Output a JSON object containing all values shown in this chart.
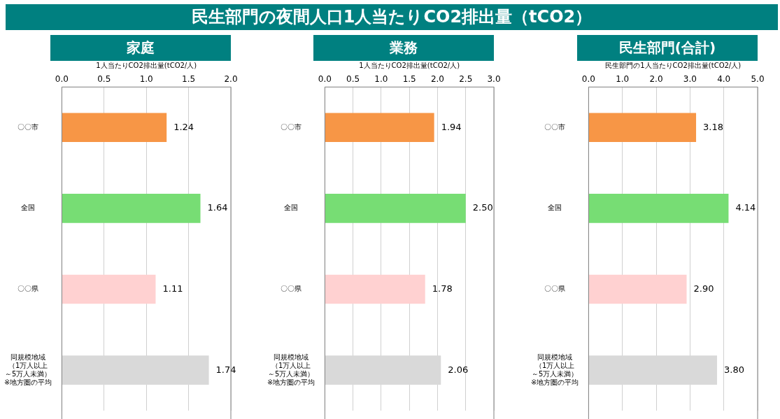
{
  "chart_data": [
    {
      "type": "other",
      "title": "民生部門の夜間人口1人当たりCO2排出量（tCO2）"
    },
    {
      "type": "bar",
      "orientation": "horizontal",
      "title": "家庭",
      "xlabel": "1人当たりCO2排出量(tCO2/人)",
      "categories": [
        "〇〇市",
        "全国",
        "〇〇県",
        "同規模地域（1万人以上～5万人未満）※地方圏の平均"
      ],
      "values": [
        1.24,
        1.64,
        1.11,
        1.74
      ],
      "colors": [
        "#f79646",
        "#77dd74",
        "#ffd1d1",
        "#d9d9d9"
      ],
      "value_labels": [
        "1.24",
        "1.64",
        "1.11",
        "1.74"
      ],
      "xlim": [
        0,
        2
      ],
      "xticks": [
        {
          "value": 0,
          "label": "0.0"
        },
        {
          "value": 0.5,
          "label": "0.5"
        },
        {
          "value": 1,
          "label": "1.0"
        },
        {
          "value": 1.5,
          "label": "1.5"
        },
        {
          "value": 2,
          "label": "2.0"
        }
      ],
      "grid": "x",
      "legend": false
    },
    {
      "type": "bar",
      "orientation": "horizontal",
      "title": "業務",
      "xlabel": "1人当たりCO2排出量(tCO2/人)",
      "categories": [
        "〇〇市",
        "全国",
        "〇〇県",
        "同規模地域（1万人以上～5万人未満）※地方圏の平均"
      ],
      "values": [
        1.94,
        2.5,
        1.78,
        2.06
      ],
      "colors": [
        "#f79646",
        "#77dd74",
        "#ffd1d1",
        "#d9d9d9"
      ],
      "value_labels": [
        "1.94",
        "2.50",
        "1.78",
        "2.06"
      ],
      "xlim": [
        0,
        3
      ],
      "xticks": [
        {
          "value": 0,
          "label": "0.0"
        },
        {
          "value": 0.5,
          "label": "0.5"
        },
        {
          "value": 1,
          "label": "1.0"
        },
        {
          "value": 1.5,
          "label": "1.5"
        },
        {
          "value": 2,
          "label": "2.0"
        },
        {
          "value": 2.5,
          "label": "2.5"
        },
        {
          "value": 3,
          "label": "3.0"
        }
      ],
      "grid": "x",
      "legend": false
    },
    {
      "type": "bar",
      "orientation": "horizontal",
      "title": "民生部門(合計)",
      "xlabel": "民生部門の1人当たりCO2排出量(tCO2/人)",
      "categories": [
        "〇〇市",
        "全国",
        "〇〇県",
        "同規模地域（1万人以上～5万人未満）※地方圏の平均"
      ],
      "values": [
        3.18,
        4.14,
        2.9,
        3.8
      ],
      "colors": [
        "#f79646",
        "#77dd74",
        "#ffd1d1",
        "#d9d9d9"
      ],
      "value_labels": [
        "3.18",
        "4.14",
        "2.90",
        "3.80"
      ],
      "xlim": [
        0,
        5
      ],
      "xticks": [
        {
          "value": 0,
          "label": "0.0"
        },
        {
          "value": 1,
          "label": "1.0"
        },
        {
          "value": 2,
          "label": "2.0"
        },
        {
          "value": 3,
          "label": "3.0"
        },
        {
          "value": 4,
          "label": "4.0"
        },
        {
          "value": 5,
          "label": "5.0"
        }
      ],
      "grid": "x",
      "legend": false
    }
  ]
}
